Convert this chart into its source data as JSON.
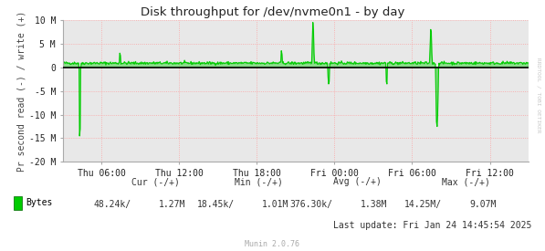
{
  "title": "Disk throughput for /dev/nvme0n1 - by day",
  "ylabel": "Pr second read (-) / write (+)",
  "background_color": "#ffffff",
  "plot_bg_color": "#e8e8e8",
  "grid_color_major": "#ff9999",
  "line_color": "#00cc00",
  "zero_line_color": "#000000",
  "ylim": [
    -20000000,
    10000000
  ],
  "yticks": [
    -20000000,
    -15000000,
    -10000000,
    -5000000,
    0,
    5000000,
    10000000
  ],
  "ytick_labels": [
    "-20 M",
    "-15 M",
    "-10 M",
    "-5 M",
    "0",
    "5 M",
    "10 M"
  ],
  "xtick_labels": [
    "Thu 06:00",
    "Thu 12:00",
    "Thu 18:00",
    "Fri 00:00",
    "Fri 06:00",
    "Fri 12:00"
  ],
  "watermark": "RRDTOOL / TOBI OETIKER",
  "legend_label": "Bytes",
  "legend_color": "#00cc00",
  "cur_neg": "48.24k/",
  "cur_pos": "1.27M",
  "min_neg": "18.45k/",
  "min_pos": "1.01M",
  "avg_neg": "376.30k/",
  "avg_pos": "1.38M",
  "max_neg": "14.25M/",
  "max_pos": "9.07M",
  "last_update": "Last update: Fri Jan 24 14:45:54 2025",
  "munin_version": "Munin 2.0.76"
}
